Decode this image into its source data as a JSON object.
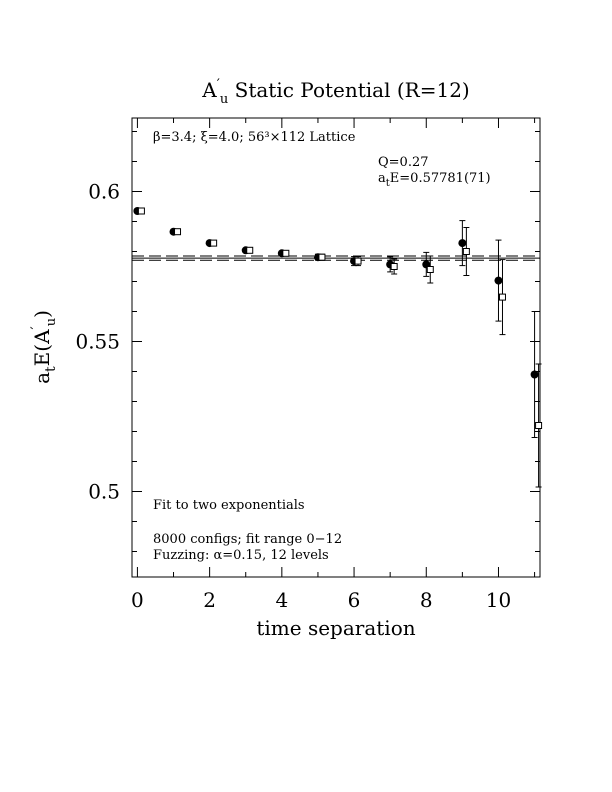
{
  "chart_data": {
    "type": "scatter",
    "title": "A′u Static Potential (R=12)",
    "title_parts": {
      "pre": "A",
      "prime": "′",
      "sub": "u",
      "rest": " Static Potential (R=12)"
    },
    "xlabel": "time separation",
    "ylabel": "a_tE(A′u)",
    "ylabel_parts": {
      "a": "a",
      "sub_t": "t",
      "mid": "E(A",
      "prime": "′",
      "sub_u": "u",
      "end": ")"
    },
    "xlim": [
      -0.15,
      11.15
    ],
    "ylim": [
      0.4715,
      0.6245
    ],
    "x_ticks": [
      0,
      2,
      4,
      6,
      8,
      10
    ],
    "x_tick_labels": [
      "0",
      "2",
      "4",
      "6",
      "8",
      "10"
    ],
    "y_ticks": [
      0.5,
      0.55,
      0.6
    ],
    "y_tick_labels": [
      "0.5",
      "0.55",
      "0.6"
    ],
    "grid": false,
    "annotations": {
      "lattice": "β=3.4; ξ=4.0; 56³×112 Lattice",
      "q": "Q=0.27",
      "energy": "a_tE=0.57781(71)",
      "energy_parts": {
        "a": "a",
        "sub": "t",
        "rest": "E=0.57781(71)"
      },
      "fit": "Fit to two exponentials",
      "configs": "8000 configs; fit range 0−12",
      "fuzzing": "Fuzzing: α=0.15, 12 levels"
    },
    "fit_line": {
      "value": 0.57781,
      "error": 0.00071
    },
    "series": [
      {
        "marker": "filled-circle",
        "points": [
          {
            "x": 0,
            "y": 0.5935,
            "err": 0.0
          },
          {
            "x": 1,
            "y": 0.5866,
            "err": 0.0
          },
          {
            "x": 2,
            "y": 0.5828,
            "err": 0.0
          },
          {
            "x": 3,
            "y": 0.5804,
            "err": 0.0
          },
          {
            "x": 4,
            "y": 0.5794,
            "err": 0.0007
          },
          {
            "x": 5,
            "y": 0.5781,
            "err": 0.001
          },
          {
            "x": 6,
            "y": 0.5768,
            "err": 0.0015
          },
          {
            "x": 7,
            "y": 0.5757,
            "err": 0.0025
          },
          {
            "x": 8,
            "y": 0.5757,
            "err": 0.004
          },
          {
            "x": 9,
            "y": 0.5828,
            "err": 0.0075
          },
          {
            "x": 10,
            "y": 0.5703,
            "err": 0.0135
          },
          {
            "x": 11,
            "y": 0.539,
            "err": 0.021
          }
        ]
      },
      {
        "marker": "open-square",
        "points": [
          {
            "x": 0,
            "y": 0.5935,
            "err": 0.0
          },
          {
            "x": 1,
            "y": 0.5866,
            "err": 0.0
          },
          {
            "x": 2,
            "y": 0.5828,
            "err": 0.0
          },
          {
            "x": 3,
            "y": 0.5804,
            "err": 0.0
          },
          {
            "x": 4,
            "y": 0.5794,
            "err": 0.0008
          },
          {
            "x": 5,
            "y": 0.5781,
            "err": 0.001
          },
          {
            "x": 6,
            "y": 0.5768,
            "err": 0.0015
          },
          {
            "x": 7,
            "y": 0.575,
            "err": 0.0025
          },
          {
            "x": 8,
            "y": 0.574,
            "err": 0.0045
          },
          {
            "x": 9,
            "y": 0.58,
            "err": 0.008
          },
          {
            "x": 10,
            "y": 0.5648,
            "err": 0.0125
          },
          {
            "x": 11,
            "y": 0.522,
            "err": 0.0205
          }
        ]
      }
    ]
  }
}
